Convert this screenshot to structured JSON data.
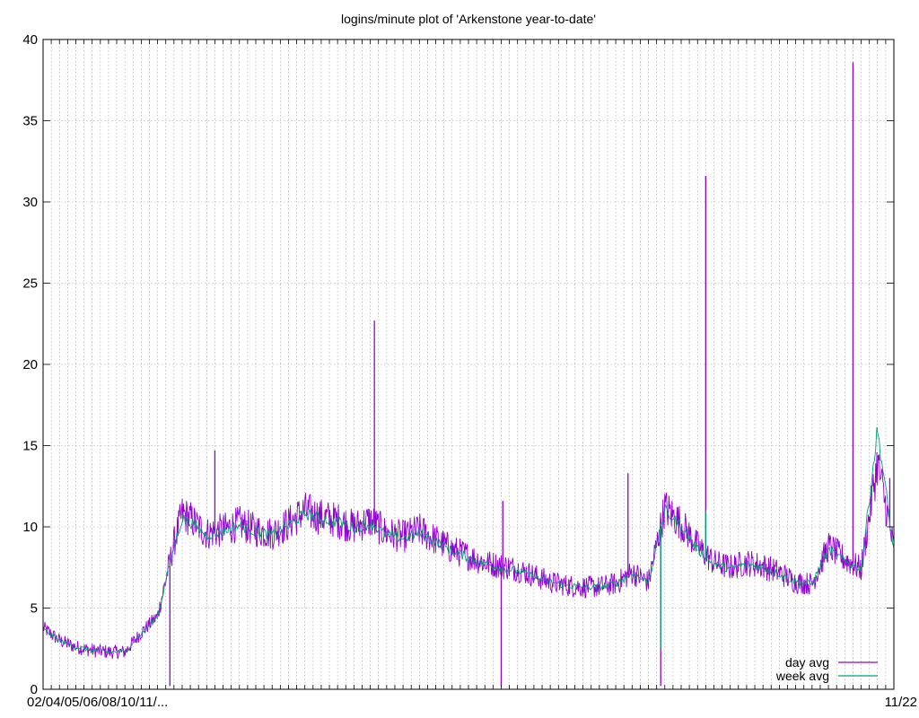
{
  "chart_data": {
    "type": "line",
    "title": "logins/minute plot of 'Arkenstone year-to-date'",
    "xlabel": "",
    "ylabel": "",
    "ylim": [
      0,
      40
    ],
    "yticks": [
      0,
      5,
      10,
      15,
      20,
      25,
      30,
      35,
      40
    ],
    "x_tick_count": 104,
    "x_tick_labels_visible_left": "02/04/05/06/08/10/11/...",
    "x_tick_labels_visible_right": "11/22",
    "grid": true,
    "legend_position": "bottom-right",
    "colors": {
      "day": "#9400d3",
      "week": "#009e73",
      "grid": "#a0a0a0"
    },
    "series": [
      {
        "name": "day avg",
        "color": "#9400d3",
        "x_week": [
          0,
          2,
          4,
          6,
          8,
          10,
          12,
          14,
          16,
          17,
          18,
          19,
          20,
          22,
          24,
          26,
          28,
          30,
          32,
          34,
          36,
          38,
          40,
          42,
          44,
          46,
          48,
          50,
          52,
          54,
          56,
          58,
          60,
          62,
          64,
          66,
          68,
          70,
          72,
          74,
          76,
          78,
          80,
          82,
          84,
          86,
          88,
          90,
          92,
          94,
          96,
          98,
          100,
          102,
          104
        ],
        "values": [
          3.8,
          3.0,
          2.6,
          2.4,
          2.3,
          2.3,
          3.5,
          4.5,
          9.0,
          10.8,
          10.5,
          10.0,
          9.6,
          9.8,
          10.2,
          9.8,
          9.6,
          10.2,
          11.0,
          10.6,
          10.4,
          10.0,
          10.4,
          9.6,
          9.4,
          9.8,
          9.2,
          8.6,
          8.2,
          7.8,
          7.6,
          7.4,
          7.0,
          6.6,
          6.4,
          6.3,
          6.3,
          6.5,
          7.2,
          6.6,
          11.2,
          10.2,
          8.8,
          7.8,
          7.5,
          7.8,
          7.6,
          7.2,
          6.6,
          6.5,
          8.8,
          8.0,
          7.4,
          14.0,
          8.6
        ],
        "spikes": [
          {
            "x_week": 15.5,
            "value": 0.2
          },
          {
            "x_week": 21.0,
            "value": 14.7
          },
          {
            "x_week": 40.5,
            "value": 22.7
          },
          {
            "x_week": 56.0,
            "value": 0.2
          },
          {
            "x_week": 56.2,
            "value": 11.6
          },
          {
            "x_week": 71.5,
            "value": 13.3
          },
          {
            "x_week": 75.5,
            "value": 0.2
          },
          {
            "x_week": 81.0,
            "value": 31.6
          },
          {
            "x_week": 99.0,
            "value": 38.6
          },
          {
            "x_week": 103.5,
            "value": 13.0
          }
        ]
      },
      {
        "name": "week avg",
        "color": "#009e73",
        "x_week": [
          0,
          2,
          4,
          6,
          8,
          10,
          12,
          14,
          16,
          17,
          18,
          19,
          20,
          22,
          24,
          26,
          28,
          30,
          32,
          34,
          36,
          38,
          40,
          42,
          44,
          46,
          48,
          50,
          52,
          54,
          56,
          58,
          60,
          62,
          64,
          66,
          68,
          70,
          72,
          74,
          76,
          78,
          80,
          82,
          84,
          86,
          88,
          90,
          92,
          94,
          96,
          98,
          100,
          102,
          104
        ],
        "values": [
          3.7,
          3.0,
          2.6,
          2.4,
          2.3,
          2.3,
          3.4,
          4.5,
          8.8,
          10.5,
          10.3,
          9.9,
          9.5,
          9.7,
          10.1,
          9.7,
          9.5,
          10.1,
          10.8,
          10.5,
          10.3,
          9.9,
          10.2,
          9.5,
          9.3,
          9.6,
          9.1,
          8.5,
          8.1,
          7.7,
          7.5,
          7.3,
          6.9,
          6.6,
          6.4,
          6.3,
          6.3,
          6.5,
          7.1,
          6.6,
          11.0,
          10.0,
          8.6,
          7.7,
          7.4,
          7.7,
          7.5,
          7.1,
          6.6,
          6.5,
          8.6,
          7.9,
          7.4,
          16.0,
          8.5
        ],
        "spikes": [
          {
            "x_week": 75.5,
            "value": 2.5
          },
          {
            "x_week": 81.0,
            "value": 11.0
          }
        ]
      }
    ]
  }
}
